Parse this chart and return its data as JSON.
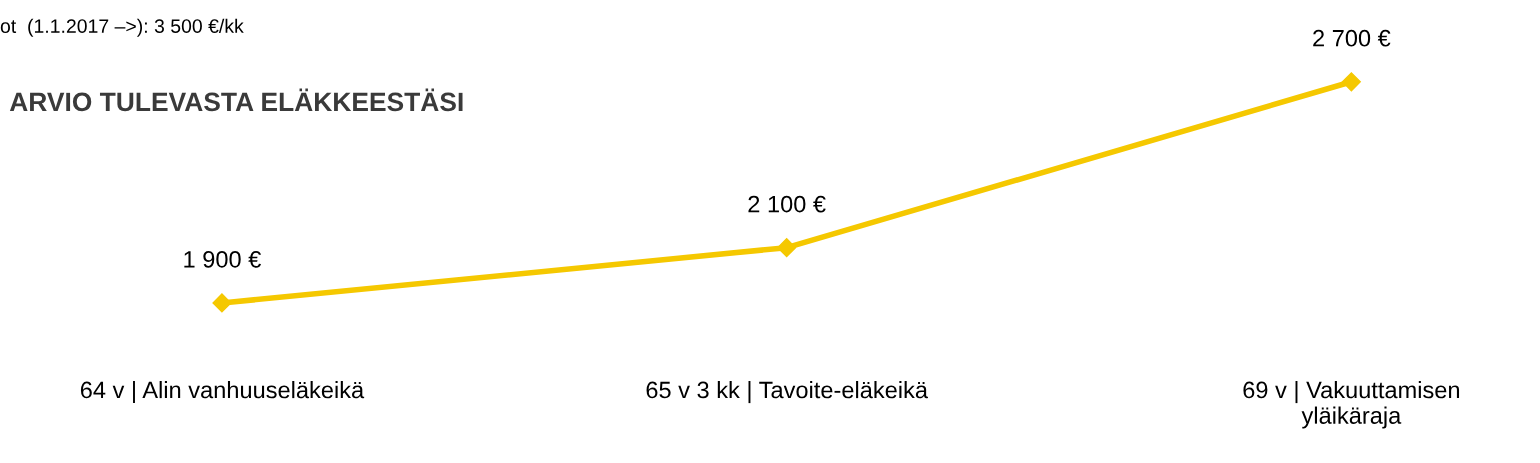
{
  "chart_data": {
    "type": "line",
    "title": "ARVIO TULEVASTA ELÄKKEESTÄSI",
    "categories": [
      "64 v | Alin vanhuuseläkeikä",
      "65 v 3 kk | Tavoite-eläkeikä",
      "69 v | Vakuuttamisen\nyläikäraja"
    ],
    "series": [
      {
        "color": "#f5c800",
        "values": [
          1900,
          2100,
          2700
        ],
        "value_labels": [
          "1 900 €",
          "2 100 €",
          "2 700 €"
        ]
      }
    ],
    "marker": "diamond",
    "line_style": "solid",
    "grid": false,
    "legend": false,
    "annotations": [
      "ot  (1.1.2017 –>): 3 500 €/kk"
    ]
  }
}
